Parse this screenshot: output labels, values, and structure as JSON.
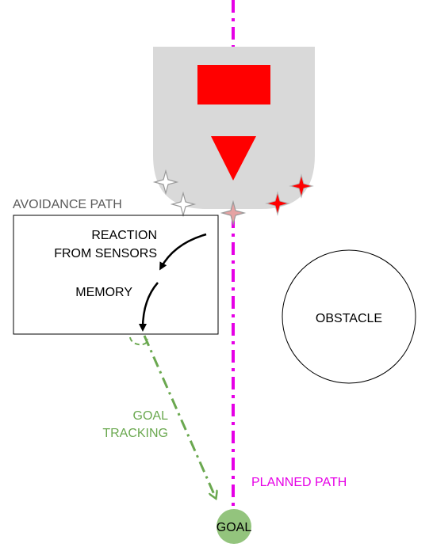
{
  "labels": {
    "avoidance_path": "AVOIDANCE PATH",
    "reaction_line1": "REACTION",
    "reaction_line2": "FROM SENSORS",
    "memory": "MEMORY",
    "obstacle": "OBSTACLE",
    "goal_tracking_line1": "GOAL",
    "goal_tracking_line2": "TRACKING",
    "planned_path": "PLANNED PATH",
    "goal": "GOAL"
  },
  "colors": {
    "planned_path": "#e600e6",
    "goal_tracking": "#6aa84f",
    "goal_fill": "#93c47d",
    "robot_body": "#d9d9d9",
    "robot_marker": "#ff0000",
    "sensor_active": "#ff0000",
    "sensor_inactive": "#ffffff",
    "sensor_partial": "#e6a3a3",
    "avoidance_label": "#595959",
    "text": "#000000"
  },
  "icons": {
    "sensor": "four-point-star-icon",
    "robot_heading": "triangle-down-icon"
  }
}
